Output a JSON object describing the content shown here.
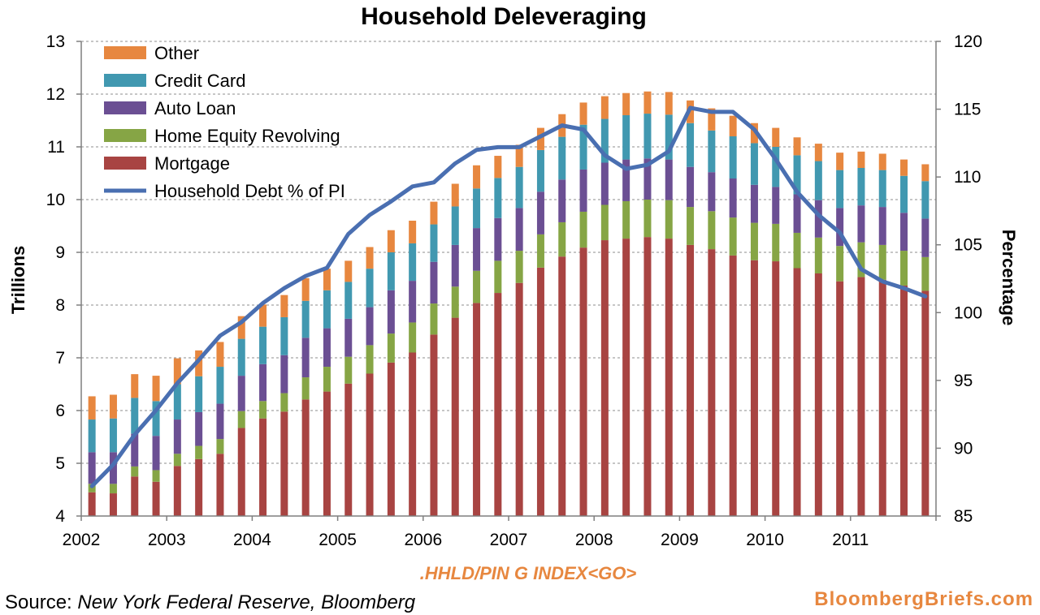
{
  "chart_data": {
    "type": "bar",
    "stacked": true,
    "title": "Household Deleveraging",
    "ylabel": "Trillions",
    "y2label": "Percentage",
    "ylim": [
      4,
      13
    ],
    "y_ticks": [
      4,
      5,
      6,
      7,
      8,
      9,
      10,
      11,
      12,
      13
    ],
    "y2lim": [
      85,
      120
    ],
    "y2_ticks": [
      85,
      90,
      95,
      100,
      105,
      110,
      115,
      120
    ],
    "x_ticks": [
      "2002",
      "2003",
      "2004",
      "2005",
      "2006",
      "2007",
      "2008",
      "2009",
      "2010",
      "2011"
    ],
    "grid": true,
    "legend_position": "top-left",
    "quarters": [
      "2002Q1",
      "2002Q2",
      "2002Q3",
      "2002Q4",
      "2003Q1",
      "2003Q2",
      "2003Q3",
      "2003Q4",
      "2004Q1",
      "2004Q2",
      "2004Q3",
      "2004Q4",
      "2005Q1",
      "2005Q2",
      "2005Q3",
      "2005Q4",
      "2006Q1",
      "2006Q2",
      "2006Q3",
      "2006Q4",
      "2007Q1",
      "2007Q2",
      "2007Q3",
      "2007Q4",
      "2008Q1",
      "2008Q2",
      "2008Q3",
      "2008Q4",
      "2009Q1",
      "2009Q2",
      "2009Q3",
      "2009Q4",
      "2010Q1",
      "2010Q2",
      "2010Q3",
      "2010Q4",
      "2011Q1",
      "2011Q2",
      "2011Q3",
      "2011Q4"
    ],
    "series": [
      {
        "name": "Mortgage",
        "color": "#a84442",
        "values": [
          4.45,
          4.43,
          4.75,
          4.65,
          4.95,
          5.08,
          5.18,
          5.67,
          5.85,
          5.98,
          6.21,
          6.36,
          6.51,
          6.7,
          6.91,
          7.1,
          7.44,
          7.76,
          8.04,
          8.23,
          8.42,
          8.71,
          8.92,
          9.09,
          9.23,
          9.26,
          9.29,
          9.26,
          9.14,
          9.06,
          8.94,
          8.85,
          8.83,
          8.7,
          8.6,
          8.45,
          8.53,
          8.48,
          8.37,
          8.27
        ]
      },
      {
        "name": "Home Equity Revolving",
        "color": "#86a545",
        "values": [
          0.16,
          0.18,
          0.19,
          0.22,
          0.23,
          0.25,
          0.28,
          0.32,
          0.33,
          0.35,
          0.42,
          0.47,
          0.51,
          0.54,
          0.55,
          0.57,
          0.59,
          0.59,
          0.61,
          0.61,
          0.61,
          0.63,
          0.65,
          0.68,
          0.67,
          0.71,
          0.71,
          0.73,
          0.72,
          0.72,
          0.72,
          0.71,
          0.71,
          0.67,
          0.68,
          0.67,
          0.66,
          0.66,
          0.66,
          0.64
        ]
      },
      {
        "name": "Auto Loan",
        "color": "#6b4f93",
        "values": [
          0.6,
          0.6,
          0.62,
          0.65,
          0.65,
          0.64,
          0.67,
          0.67,
          0.7,
          0.72,
          0.75,
          0.73,
          0.72,
          0.72,
          0.82,
          0.79,
          0.79,
          0.79,
          0.81,
          0.81,
          0.81,
          0.81,
          0.81,
          0.8,
          0.8,
          0.79,
          0.78,
          0.77,
          0.76,
          0.74,
          0.74,
          0.72,
          0.7,
          0.73,
          0.71,
          0.72,
          0.7,
          0.72,
          0.72,
          0.73
        ]
      },
      {
        "name": "Credit Card",
        "color": "#4198b0",
        "values": [
          0.62,
          0.64,
          0.68,
          0.66,
          0.67,
          0.68,
          0.7,
          0.7,
          0.71,
          0.72,
          0.7,
          0.72,
          0.7,
          0.73,
          0.72,
          0.71,
          0.71,
          0.73,
          0.75,
          0.76,
          0.78,
          0.79,
          0.81,
          0.85,
          0.83,
          0.84,
          0.85,
          0.85,
          0.83,
          0.79,
          0.8,
          0.79,
          0.76,
          0.74,
          0.74,
          0.72,
          0.71,
          0.7,
          0.7,
          0.71
        ]
      },
      {
        "name": "Other",
        "color": "#e7873f",
        "values": [
          0.44,
          0.45,
          0.45,
          0.48,
          0.49,
          0.49,
          0.47,
          0.43,
          0.42,
          0.42,
          0.43,
          0.41,
          0.4,
          0.41,
          0.42,
          0.43,
          0.43,
          0.43,
          0.44,
          0.42,
          0.42,
          0.42,
          0.43,
          0.42,
          0.43,
          0.42,
          0.42,
          0.43,
          0.43,
          0.42,
          0.39,
          0.38,
          0.36,
          0.34,
          0.33,
          0.33,
          0.31,
          0.31,
          0.31,
          0.32
        ]
      }
    ],
    "line": {
      "name": "Household Debt % of PI",
      "color": "#4a6fb1",
      "values": [
        87.2,
        88.8,
        91.0,
        92.8,
        94.8,
        96.5,
        98.3,
        99.3,
        100.7,
        101.8,
        102.7,
        103.3,
        105.8,
        107.2,
        108.2,
        109.3,
        109.6,
        111.0,
        112.0,
        112.2,
        112.2,
        113.0,
        113.8,
        113.5,
        111.6,
        110.6,
        110.9,
        111.9,
        115.1,
        114.8,
        114.8,
        113.5,
        111.3,
        108.9,
        107.2,
        105.9,
        103.2,
        102.3,
        101.8,
        101.2
      ]
    }
  },
  "ticker": ".HHLD/PIN G INDEX<GO>",
  "source": {
    "label": "Source: ",
    "text": "New York Federal Reserve, Bloomberg"
  },
  "brand": "BloombergBriefs.com"
}
